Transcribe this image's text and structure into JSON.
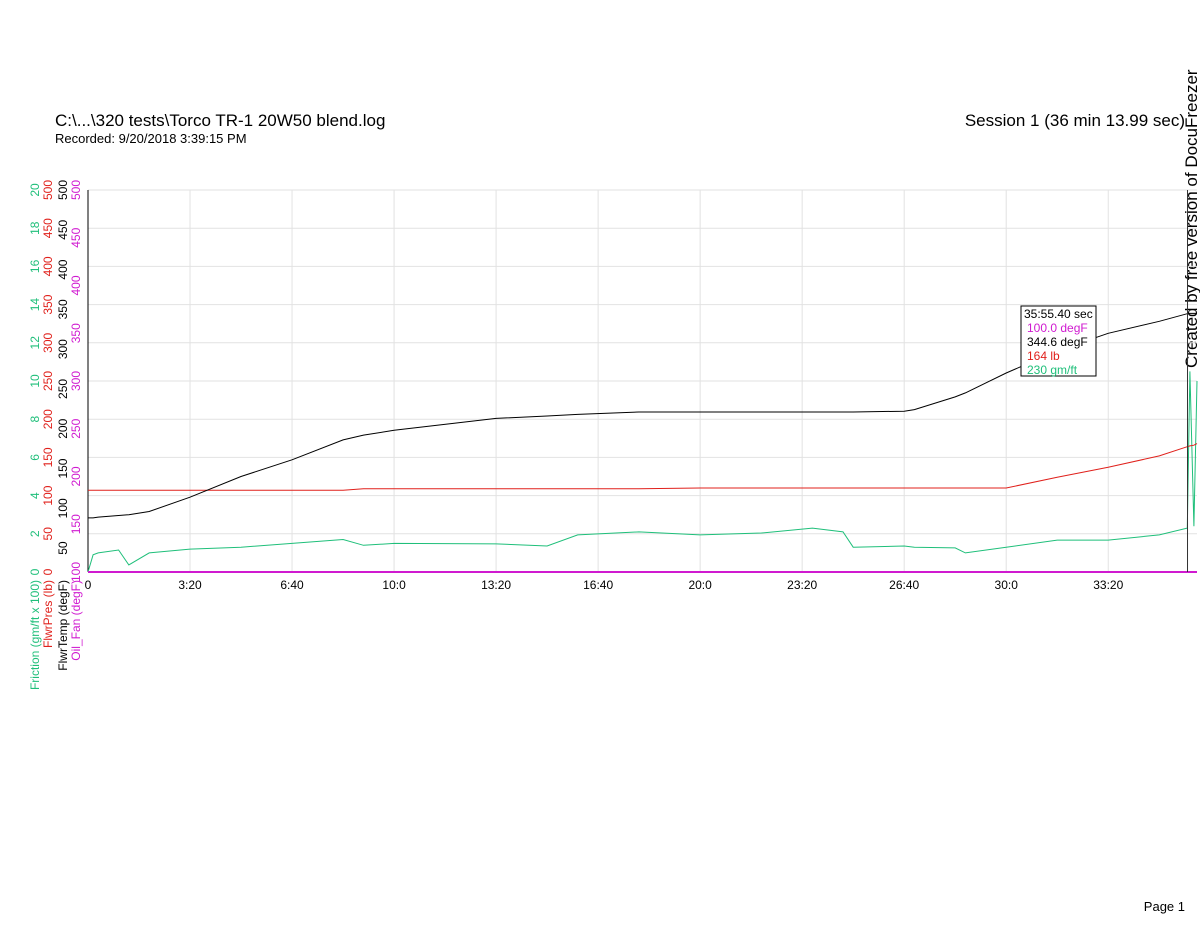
{
  "header": {
    "file": "C:\\...\\320 tests\\Torco TR-1 20W50 blend.log",
    "recorded": "Recorded: 9/20/2018 3:39:15 PM",
    "session": "Session 1 (36 min 13.99 sec)"
  },
  "watermark": "Created by free version of DocuFreezer",
  "footer": "Page 1",
  "chart_data": {
    "type": "line",
    "grid": true,
    "xlim": [
      0,
      2174
    ],
    "xticks": [
      0,
      {
        "value": 200,
        "label": "3:20"
      },
      {
        "value": 400,
        "label": "6:40"
      },
      {
        "value": 600,
        "label": "10:0"
      },
      {
        "value": 800,
        "label": "13:20"
      },
      {
        "value": 1000,
        "label": "16:40"
      },
      {
        "value": 1200,
        "label": "20:0"
      },
      {
        "value": 1400,
        "label": "23:20"
      },
      {
        "value": 1600,
        "label": "26:40"
      },
      {
        "value": 1800,
        "label": "30:0"
      },
      {
        "value": 2000,
        "label": "33:20"
      }
    ],
    "x": [
      0,
      10,
      20,
      60,
      80,
      120,
      200,
      300,
      400,
      500,
      540,
      600,
      800,
      900,
      960,
      1080,
      1200,
      1320,
      1420,
      1480,
      1500,
      1600,
      1620,
      1700,
      1720,
      1800,
      1900,
      2000,
      2100,
      2155,
      2160,
      2168,
      2174
    ],
    "series": [
      {
        "name": "Friction (gm/ft x 100)",
        "color": "#1fbf7a",
        "ylim": [
          0,
          20
        ],
        "yticks": [
          0,
          2,
          4,
          6,
          8,
          10,
          12,
          14,
          16,
          18,
          20
        ],
        "values": [
          0,
          0.9,
          1.0,
          1.15,
          0.37,
          1.0,
          1.2,
          1.3,
          1.5,
          1.7,
          1.4,
          1.5,
          1.47,
          1.36,
          1.94,
          2.1,
          1.94,
          2.04,
          2.3,
          2.1,
          1.3,
          1.36,
          1.3,
          1.26,
          1.0,
          1.3,
          1.67,
          1.67,
          1.94,
          2.3,
          10.5,
          2.4,
          10
        ]
      },
      {
        "name": "FlwrPres (lb)",
        "color": "#e0201b",
        "ylim": [
          0,
          500
        ],
        "yticks": [
          0,
          50,
          100,
          150,
          200,
          250,
          300,
          350,
          400,
          450,
          500
        ],
        "values": [
          107,
          107,
          107,
          107,
          107,
          107,
          107,
          107,
          107,
          107,
          109,
          109,
          109,
          109,
          109,
          109,
          110,
          110,
          110,
          110,
          110,
          110,
          110,
          110,
          110,
          110,
          124,
          137,
          152,
          164,
          165,
          166,
          168
        ]
      },
      {
        "name": "FlwrTemp (degF)",
        "color": "#000000",
        "ylim": [
          20,
          500
        ],
        "yticks": [
          50,
          100,
          150,
          200,
          250,
          300,
          350,
          400,
          450,
          500
        ],
        "values": [
          88,
          88,
          89,
          91,
          92,
          96,
          114,
          140,
          161,
          186,
          192,
          198,
          213,
          216,
          218,
          221,
          221,
          221,
          221,
          221,
          221,
          222,
          224,
          240,
          245,
          270,
          298,
          320,
          335,
          344.6,
          345,
          345,
          345
        ]
      },
      {
        "name": "Oil_Fan (degF)",
        "color": "#d01ad0",
        "ylim": [
          100,
          500
        ],
        "yticks": [
          100,
          150,
          200,
          250,
          300,
          350,
          400,
          450,
          500
        ],
        "values": [
          100,
          100,
          100,
          100,
          100,
          100,
          100,
          100,
          100,
          100,
          100,
          100,
          100,
          100,
          100,
          100,
          100,
          100,
          100,
          100,
          100,
          100,
          100,
          100,
          100,
          100,
          100,
          100,
          100,
          100,
          100,
          100,
          100
        ]
      }
    ],
    "cursor_x": 2155.4,
    "readout": {
      "time": "35:55.40 sec",
      "lines": [
        "100.0 degF",
        "344.6 degF",
        "164 lb",
        "230 gm/ft"
      ]
    }
  }
}
